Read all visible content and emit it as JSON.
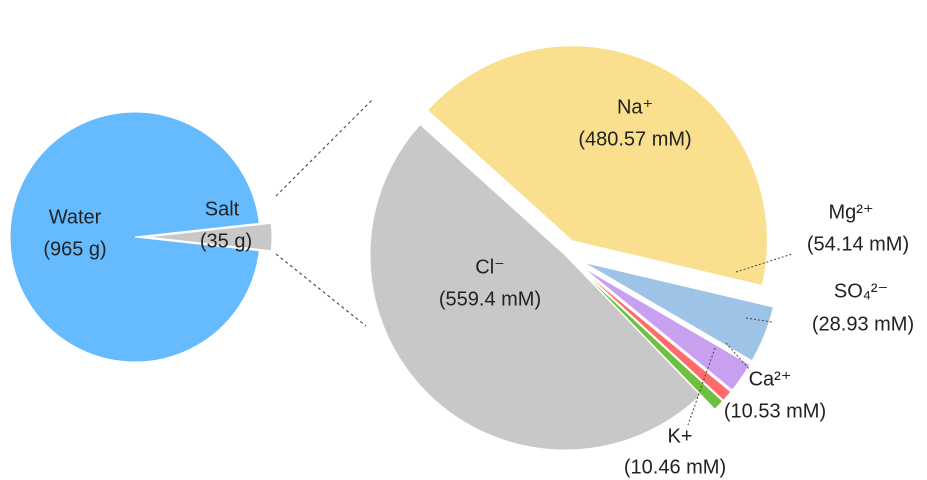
{
  "chart_data": [
    {
      "type": "pie",
      "categories": [
        "Water",
        "Salt"
      ],
      "values": [
        965,
        35
      ],
      "value_labels": [
        "(965 g)",
        "(35 g)"
      ],
      "colors": [
        "#66bbff",
        "#c8c8c8"
      ]
    },
    {
      "type": "pie",
      "categories": [
        "Na⁺",
        "Mg²⁺",
        "SO₄²⁻",
        "Ca²⁺",
        "K+",
        "Cl⁻"
      ],
      "values": [
        480.57,
        54.14,
        28.93,
        10.53,
        10.46,
        559.4
      ],
      "value_labels": [
        "(480.57 mM)",
        "(54.14 mM)",
        "(28.93 mM)",
        "(10.53 mM)",
        "(10.46 mM)",
        "(559.4 mM)"
      ],
      "colors": [
        "#f9df8e",
        "#9dc3e6",
        "#c9a0f0",
        "#ff6b6b",
        "#70c040",
        "#c8c8c8"
      ]
    }
  ]
}
